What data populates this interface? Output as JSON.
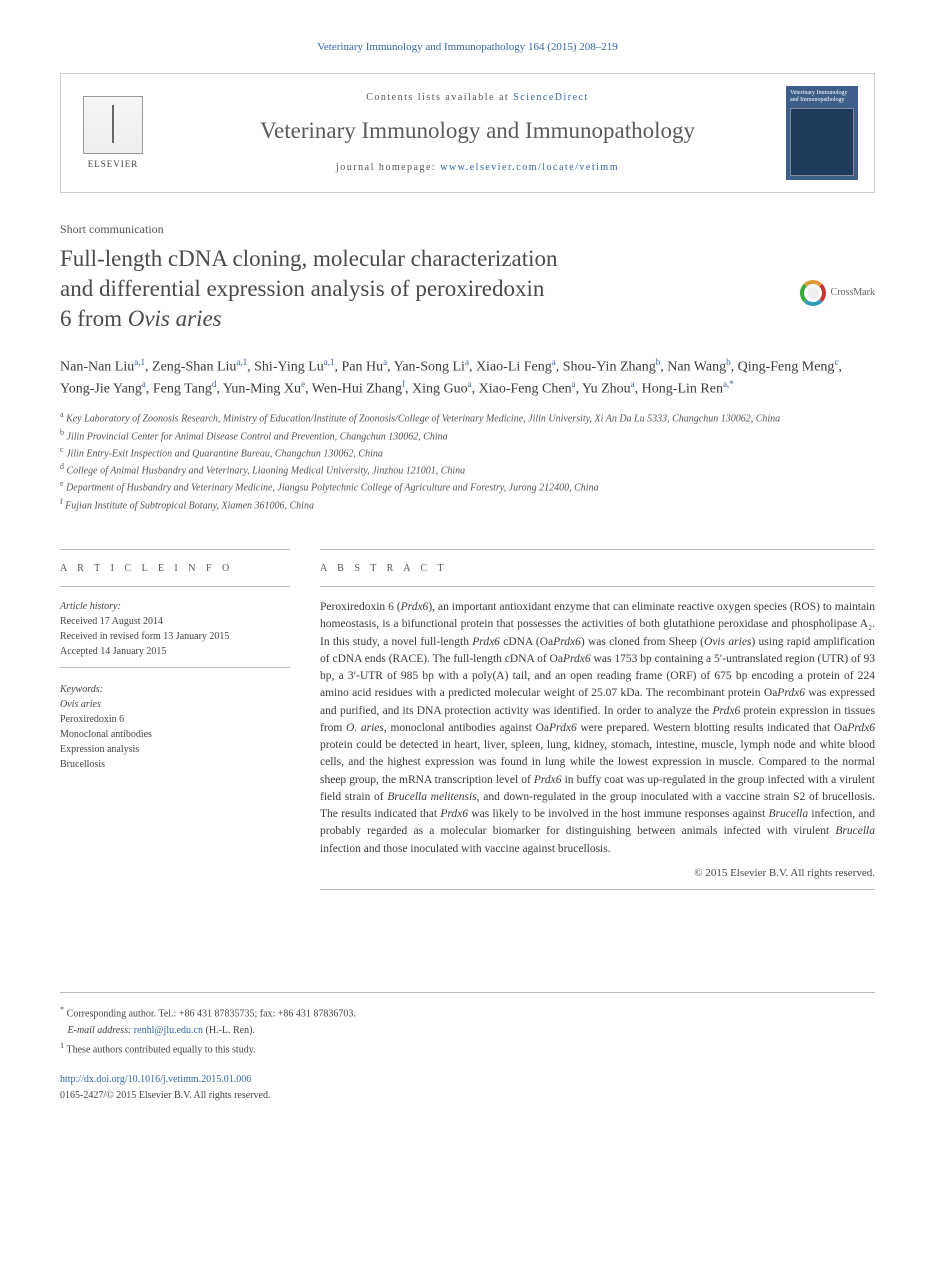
{
  "header": {
    "citation": "Veterinary Immunology and Immunopathology 164 (2015) 208–219",
    "contents_prefix": "Contents lists available at ",
    "contents_link": "ScienceDirect",
    "journal_title": "Veterinary Immunology and Immunopathology",
    "homepage_prefix": "journal homepage: ",
    "homepage_url": "www.elsevier.com/locate/vetimm",
    "elsevier_label": "ELSEVIER",
    "cover_title": "Veterinary Immunology and Immunopathology"
  },
  "article_type": "Short communication",
  "title_line1": "Full-length cDNA cloning, molecular characterization",
  "title_line2": "and differential expression analysis of peroxiredoxin",
  "title_line3": "6 from Ovis aries",
  "crossmark_label": "CrossMark",
  "authors_html": "Nan-Nan Liu<sup>a,1</sup>, Zeng-Shan Liu<sup>a,1</sup>, Shi-Ying Lu<sup>a,1</sup>, Pan Hu<sup>a</sup>, Yan-Song Li<sup>a</sup>, Xiao-Li Feng<sup>a</sup>, Shou-Yin Zhang<sup>b</sup>, Nan Wang<sup>b</sup>, Qing-Feng Meng<sup>c</sup>, Yong-Jie Yang<sup>a</sup>, Feng Tang<sup>d</sup>, Yun-Ming Xu<sup>e</sup>, Wen-Hui Zhang<sup>f</sup>, Xing Guo<sup>a</sup>, Xiao-Feng Chen<sup>a</sup>, Yu Zhou<sup>a</sup>, Hong-Lin Ren<sup>a,*</sup>",
  "affiliations": [
    {
      "sup": "a",
      "text": "Key Laboratory of Zoonosis Research, Ministry of Education/Institute of Zoonosis/College of Veterinary Medicine, Jilin University, Xi An Da Lu 5333, Changchun 130062, China"
    },
    {
      "sup": "b",
      "text": "Jilin Provincial Center for Animal Disease Control and Prevention, Changchun 130062, China"
    },
    {
      "sup": "c",
      "text": "Jilin Entry-Exit Inspection and Quarantine Bureau, Changchun 130062, China"
    },
    {
      "sup": "d",
      "text": "College of Animal Husbandry and Veterinary, Liaoning Medical University, Jinzhou 121001, China"
    },
    {
      "sup": "e",
      "text": "Department of Husbandry and Veterinary Medicine, Jiangsu Polytechnic College of Agriculture and Forestry, Jurong 212400, China"
    },
    {
      "sup": "f",
      "text": "Fujian Institute of Subtropical Botany, Xiamen 361006, China"
    }
  ],
  "info": {
    "head": "A R T I C L E    I N F O",
    "history_head": "Article history:",
    "received": "Received 17 August 2014",
    "revised": "Received in revised form 13 January 2015",
    "accepted": "Accepted 14 January 2015",
    "keywords_head": "Keywords:",
    "keywords": [
      "Ovis aries",
      "Peroxiredoxin 6",
      "Monoclonal antibodies",
      "Expression analysis",
      "Brucellosis"
    ]
  },
  "abstract": {
    "head": "A B S T R A C T",
    "text": "Peroxiredoxin 6 (Prdx6), an important antioxidant enzyme that can eliminate reactive oxygen species (ROS) to maintain homeostasis, is a bifunctional protein that possesses the activities of both glutathione peroxidase and phospholipase A₂. In this study, a novel full-length Prdx6 cDNA (OaPrdx6) was cloned from Sheep (Ovis aries) using rapid amplification of cDNA ends (RACE). The full-length cDNA of OaPrdx6 was 1753 bp containing a 5′-untranslated region (UTR) of 93 bp, a 3′-UTR of 985 bp with a poly(A) tail, and an open reading frame (ORF) of 675 bp encoding a protein of 224 amino acid residues with a predicted molecular weight of 25.07 kDa. The recombinant protein OaPrdx6 was expressed and purified, and its DNA protection activity was identified. In order to analyze the Prdx6 protein expression in tissues from O. aries, monoclonal antibodies against OaPrdx6 were prepared. Western blotting results indicated that OaPrdx6 protein could be detected in heart, liver, spleen, lung, kidney, stomach, intestine, muscle, lymph node and white blood cells, and the highest expression was found in lung while the lowest expression in muscle. Compared to the normal sheep group, the mRNA transcription level of Prdx6 in buffy coat was up-regulated in the group infected with a virulent field strain of Brucella melitensis, and down-regulated in the group inoculated with a vaccine strain S2 of brucellosis. The results indicated that Prdx6 was likely to be involved in the host immune responses against Brucella infection, and probably regarded as a molecular biomarker for distinguishing between animals infected with virulent Brucella infection and those inoculated with vaccine against brucellosis.",
    "copyright": "© 2015 Elsevier B.V. All rights reserved."
  },
  "footer": {
    "corresponding": "Corresponding author. Tel.: +86 431 87835735; fax: +86 431 87836703.",
    "email_label": "E-mail address:",
    "email": "renhl@jlu.edu.cn",
    "email_suffix": "(H.-L. Ren).",
    "equal": "These authors contributed equally to this study.",
    "doi": "http://dx.doi.org/10.1016/j.vetimm.2015.01.006",
    "issn_line": "0165-2427/© 2015 Elsevier B.V. All rights reserved."
  },
  "colors": {
    "link": "#3565a4",
    "text": "#3a3a3a",
    "muted": "#555555",
    "rule": "#bbbbbb"
  },
  "typography": {
    "body_family": "Georgia, Times New Roman, serif",
    "title_size_pt": 17,
    "journal_title_pt": 17,
    "body_size_pt": 9,
    "abstract_size_pt": 8.5,
    "affil_size_pt": 7.5
  }
}
